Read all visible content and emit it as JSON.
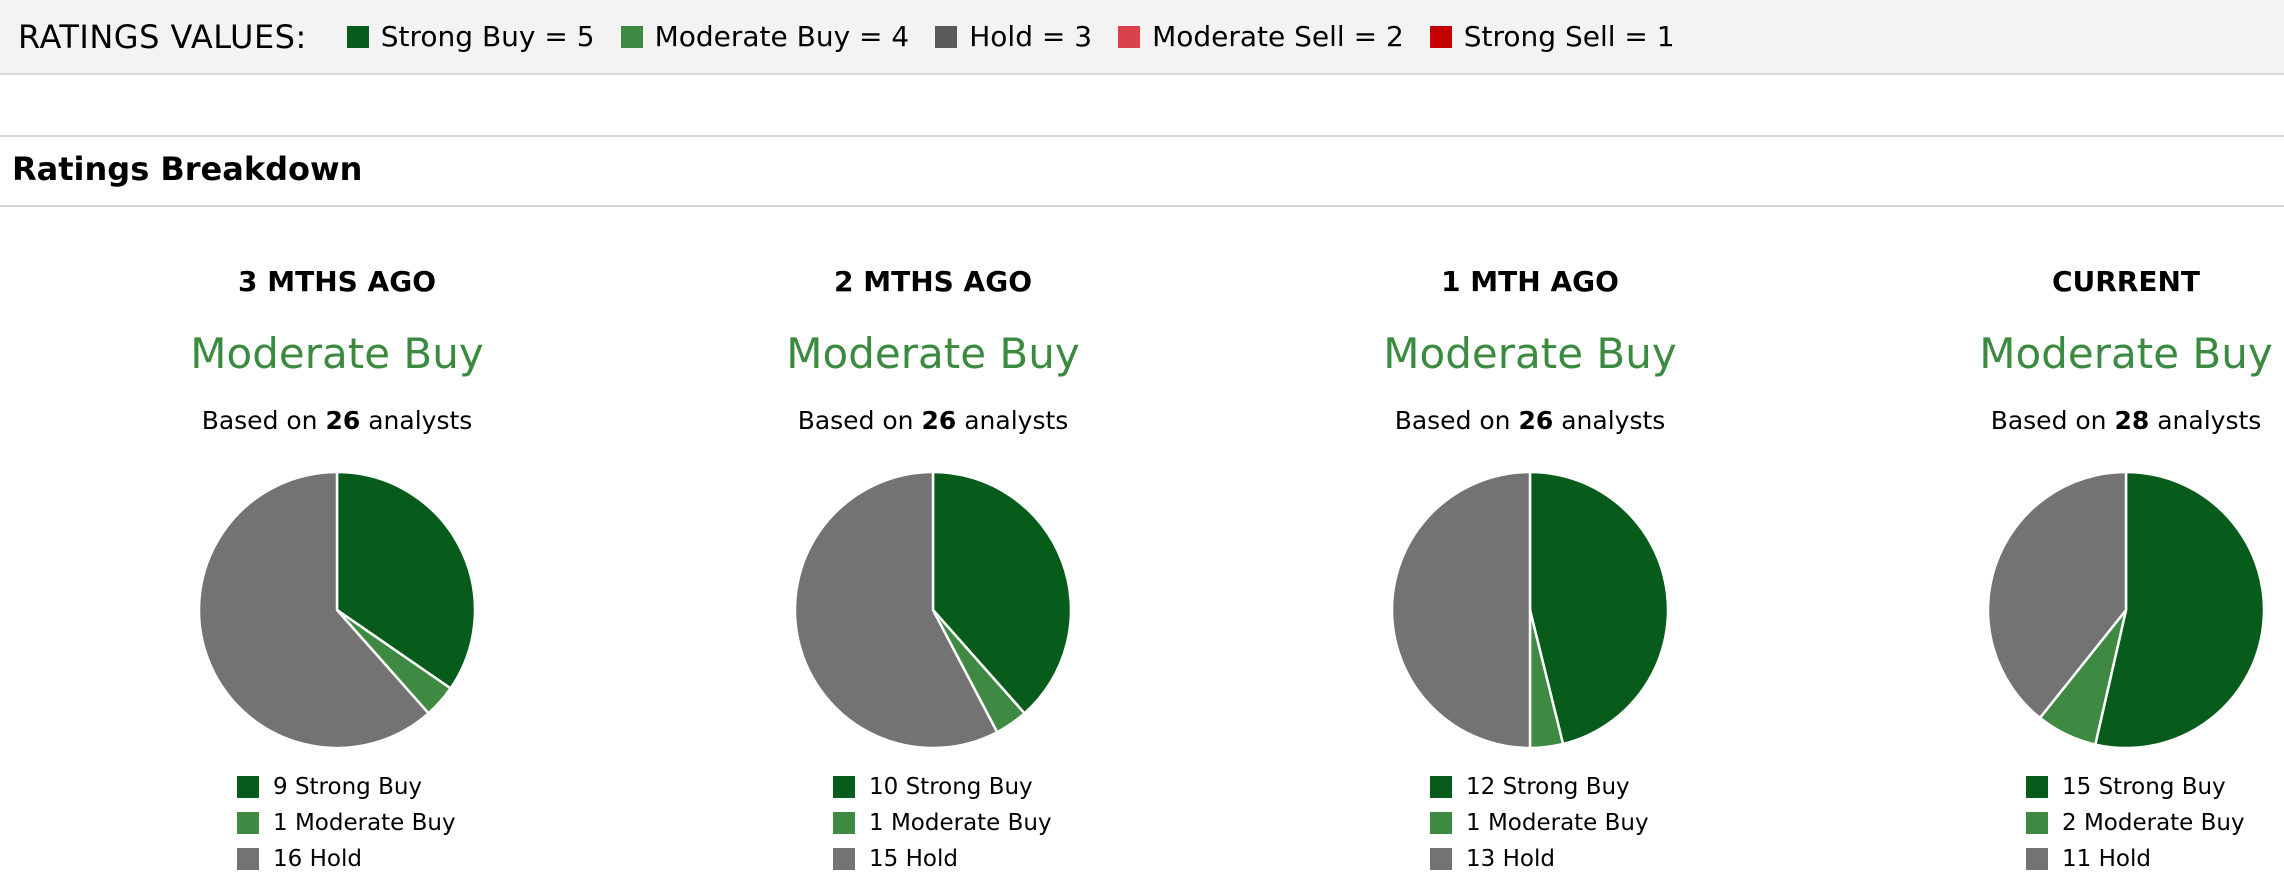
{
  "ratings_values": {
    "title": "RATINGS VALUES:",
    "items": [
      {
        "label": "Strong Buy = 5",
        "color": "#075c1b"
      },
      {
        "label": "Moderate Buy = 4",
        "color": "#3e8a43"
      },
      {
        "label": "Hold = 3",
        "color": "#5a5a5a"
      },
      {
        "label": "Moderate Sell = 2",
        "color": "#d9424a"
      },
      {
        "label": "Strong Sell = 1",
        "color": "#c40000"
      }
    ]
  },
  "section_title": "Ratings Breakdown",
  "colors": {
    "strong_buy": "#075c1b",
    "moderate_buy": "#3e8a43",
    "hold": "#737373",
    "consensus_text": "#3a8a3f"
  },
  "chart_data": [
    {
      "type": "pie",
      "title": "3 MTHS AGO",
      "consensus": "Moderate Buy",
      "based_prefix": "Based on",
      "analysts": "26",
      "based_suffix": "analysts",
      "categories": [
        "Strong Buy",
        "Moderate Buy",
        "Hold"
      ],
      "values": [
        9,
        1,
        16
      ],
      "legend": [
        "9 Strong Buy",
        "1 Moderate Buy",
        "16 Hold"
      ]
    },
    {
      "type": "pie",
      "title": "2 MTHS AGO",
      "consensus": "Moderate Buy",
      "based_prefix": "Based on",
      "analysts": "26",
      "based_suffix": "analysts",
      "categories": [
        "Strong Buy",
        "Moderate Buy",
        "Hold"
      ],
      "values": [
        10,
        1,
        15
      ],
      "legend": [
        "10 Strong Buy",
        "1 Moderate Buy",
        "15 Hold"
      ]
    },
    {
      "type": "pie",
      "title": "1 MTH AGO",
      "consensus": "Moderate Buy",
      "based_prefix": "Based on",
      "analysts": "26",
      "based_suffix": "analysts",
      "categories": [
        "Strong Buy",
        "Moderate Buy",
        "Hold"
      ],
      "values": [
        12,
        1,
        13
      ],
      "legend": [
        "12 Strong Buy",
        "1 Moderate Buy",
        "13 Hold"
      ]
    },
    {
      "type": "pie",
      "title": "CURRENT",
      "consensus": "Moderate Buy",
      "based_prefix": "Based on",
      "analysts": "28",
      "based_suffix": "analysts",
      "categories": [
        "Strong Buy",
        "Moderate Buy",
        "Hold"
      ],
      "values": [
        15,
        2,
        11
      ],
      "legend": [
        "15 Strong Buy",
        "2 Moderate Buy",
        "11 Hold"
      ]
    }
  ]
}
